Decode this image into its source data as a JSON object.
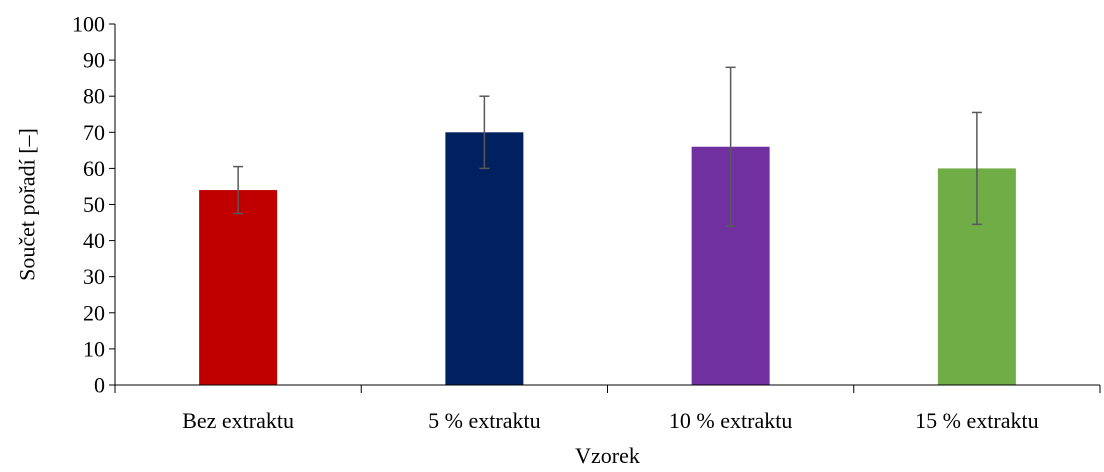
{
  "chart_data": {
    "type": "bar",
    "title": "",
    "xlabel": "Vzorek",
    "ylabel": "Součet pořadí [–]",
    "categories": [
      "Bez extraktu",
      "5 % extraktu",
      "10 % extraktu",
      "15 % extraktu"
    ],
    "values": [
      54,
      70,
      66,
      60
    ],
    "error_low": [
      47.5,
      60,
      44,
      44.5
    ],
    "error_high": [
      60.5,
      80,
      88,
      75.5
    ],
    "colors": [
      "#c00000",
      "#002060",
      "#7030a0",
      "#70ad47"
    ],
    "error_bar_color": "#595959",
    "ylim": [
      0,
      100
    ],
    "yticks": [
      0,
      10,
      20,
      30,
      40,
      50,
      60,
      70,
      80,
      90,
      100
    ],
    "grid": false,
    "legend": "none"
  }
}
